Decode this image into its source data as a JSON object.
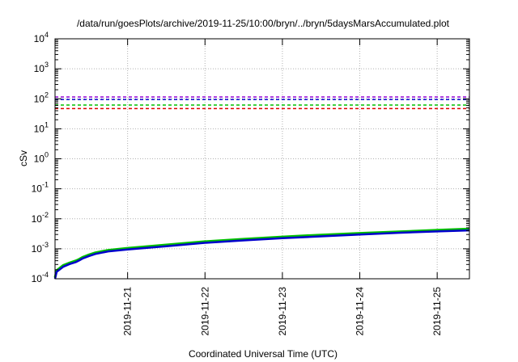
{
  "chart_data": {
    "type": "line",
    "title": "/data/run/goesPlots/archive/2019-11-25/10:00/bryn/../bryn/5daysMarsAccumulated.plot",
    "xlabel": "Coordinated Universal Time (UTC)",
    "ylabel": "cSv",
    "yscale": "log",
    "ylim": [
      0.0001,
      10000
    ],
    "yticks": [
      {
        "value": 0.0001,
        "base": "10",
        "exp": "-4"
      },
      {
        "value": 0.001,
        "base": "10",
        "exp": "-3"
      },
      {
        "value": 0.01,
        "base": "10",
        "exp": "-2"
      },
      {
        "value": 0.1,
        "base": "10",
        "exp": "-1"
      },
      {
        "value": 1,
        "base": "10",
        "exp": "0"
      },
      {
        "value": 10,
        "base": "10",
        "exp": "1"
      },
      {
        "value": 100,
        "base": "10",
        "exp": "2"
      },
      {
        "value": 1000,
        "base": "10",
        "exp": "3"
      },
      {
        "value": 10000,
        "base": "10",
        "exp": "4"
      }
    ],
    "xlim": [
      "2019-11-20T01:30",
      "2019-11-25T10:00"
    ],
    "xticks": [
      "2019-11-21",
      "2019-11-22",
      "2019-11-23",
      "2019-11-24",
      "2019-11-25"
    ],
    "grid": true,
    "reference_lines": [
      {
        "value": 115,
        "color": "#9400d3",
        "style": "dashed"
      },
      {
        "value": 95,
        "color": "#0000cc",
        "style": "dashed"
      },
      {
        "value": 62,
        "color": "#00c000",
        "style": "dashed"
      },
      {
        "value": 47,
        "color": "#e00000",
        "style": "dashed"
      }
    ],
    "series": [
      {
        "color": "#00c000",
        "x": [
          "2019-11-20T01:30",
          "2019-11-20T02:00",
          "2019-11-20T04:00",
          "2019-11-20T06:00",
          "2019-11-20T08:00",
          "2019-11-20T09:00",
          "2019-11-20T10:00",
          "2019-11-20T12:00",
          "2019-11-20T14:00",
          "2019-11-20T18:00",
          "2019-11-21T00:00",
          "2019-11-21T12:00",
          "2019-11-22T00:00",
          "2019-11-22T12:00",
          "2019-11-23T00:00",
          "2019-11-23T12:00",
          "2019-11-24T00:00",
          "2019-11-24T12:00",
          "2019-11-25T00:00",
          "2019-11-25T10:00"
        ],
        "values": [
          0.00011,
          0.00019,
          0.00028,
          0.00034,
          0.0004,
          0.00045,
          0.00052,
          0.00063,
          0.00074,
          0.0009,
          0.00105,
          0.00135,
          0.00175,
          0.0021,
          0.0025,
          0.0029,
          0.0033,
          0.0037,
          0.0042,
          0.0046
        ]
      },
      {
        "color": "#0000cc",
        "x": [
          "2019-11-20T01:30",
          "2019-11-20T02:00",
          "2019-11-20T04:00",
          "2019-11-20T06:00",
          "2019-11-20T08:00",
          "2019-11-20T09:00",
          "2019-11-20T10:00",
          "2019-11-20T12:00",
          "2019-11-20T14:00",
          "2019-11-20T18:00",
          "2019-11-21T00:00",
          "2019-11-21T12:00",
          "2019-11-22T00:00",
          "2019-11-22T12:00",
          "2019-11-23T00:00",
          "2019-11-23T12:00",
          "2019-11-24T00:00",
          "2019-11-24T12:00",
          "2019-11-25T00:00",
          "2019-11-25T10:00"
        ],
        "values": [
          0.0001,
          0.00017,
          0.00025,
          0.00031,
          0.00036,
          0.00041,
          0.00047,
          0.00057,
          0.00067,
          0.00082,
          0.00095,
          0.00122,
          0.00158,
          0.0019,
          0.00225,
          0.0026,
          0.003,
          0.0034,
          0.0038,
          0.0041
        ]
      }
    ]
  }
}
